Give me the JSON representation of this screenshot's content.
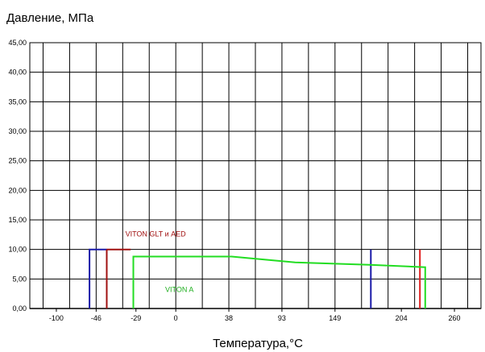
{
  "chart_data": {
    "type": "line",
    "title": "Давление, МПа",
    "xlabel": "Температура,°C",
    "ylabel": "",
    "grid": true,
    "ylim": [
      0,
      45
    ],
    "y_ticks": [
      "0,00",
      "5,00",
      "10,00",
      "15,00",
      "20,00",
      "25,00",
      "30,00",
      "35,00",
      "40,00",
      "45,00"
    ],
    "x_ticks": [
      "-100",
      "-46",
      "-29",
      "0",
      "38",
      "93",
      "149",
      "204",
      "260"
    ],
    "x_tick_positions": [
      0.5,
      2,
      3.5,
      5,
      7,
      9,
      11,
      13.5,
      15.5
    ],
    "x_domain": [
      -0.5,
      16.5
    ],
    "series": [
      {
        "color": "#1a1aa8",
        "points": [
          [
            1.75,
            0
          ],
          [
            1.75,
            10
          ],
          [
            2.4,
            10
          ]
        ]
      },
      {
        "color": "#a01010",
        "points": [
          [
            2.4,
            10
          ],
          [
            3.3,
            10
          ]
        ]
      },
      {
        "color": "#1a1aa8",
        "points": [
          [
            12.35,
            0
          ],
          [
            12.35,
            10
          ]
        ]
      },
      {
        "color": "#a01010",
        "points": [
          [
            2.4,
            0
          ],
          [
            2.4,
            10
          ]
        ]
      },
      {
        "color": "#e02020",
        "points": [
          [
            14.2,
            0
          ],
          [
            14.2,
            10
          ]
        ]
      },
      {
        "name": "VITON A",
        "color": "#22dd22",
        "points": [
          [
            3.4,
            0
          ],
          [
            3.4,
            8.8
          ],
          [
            7.1,
            8.8
          ],
          [
            9.5,
            7.8
          ],
          [
            12.3,
            7.4
          ],
          [
            14.4,
            7.0
          ],
          [
            14.4,
            0
          ]
        ]
      }
    ],
    "annotations": [
      {
        "text": "VITON GLT и AED",
        "x": 3.1,
        "y": 12.2,
        "color": "#a01010"
      },
      {
        "text": "VITON A",
        "x": 4.6,
        "y": 2.8,
        "color": "#1fae1f"
      }
    ]
  }
}
